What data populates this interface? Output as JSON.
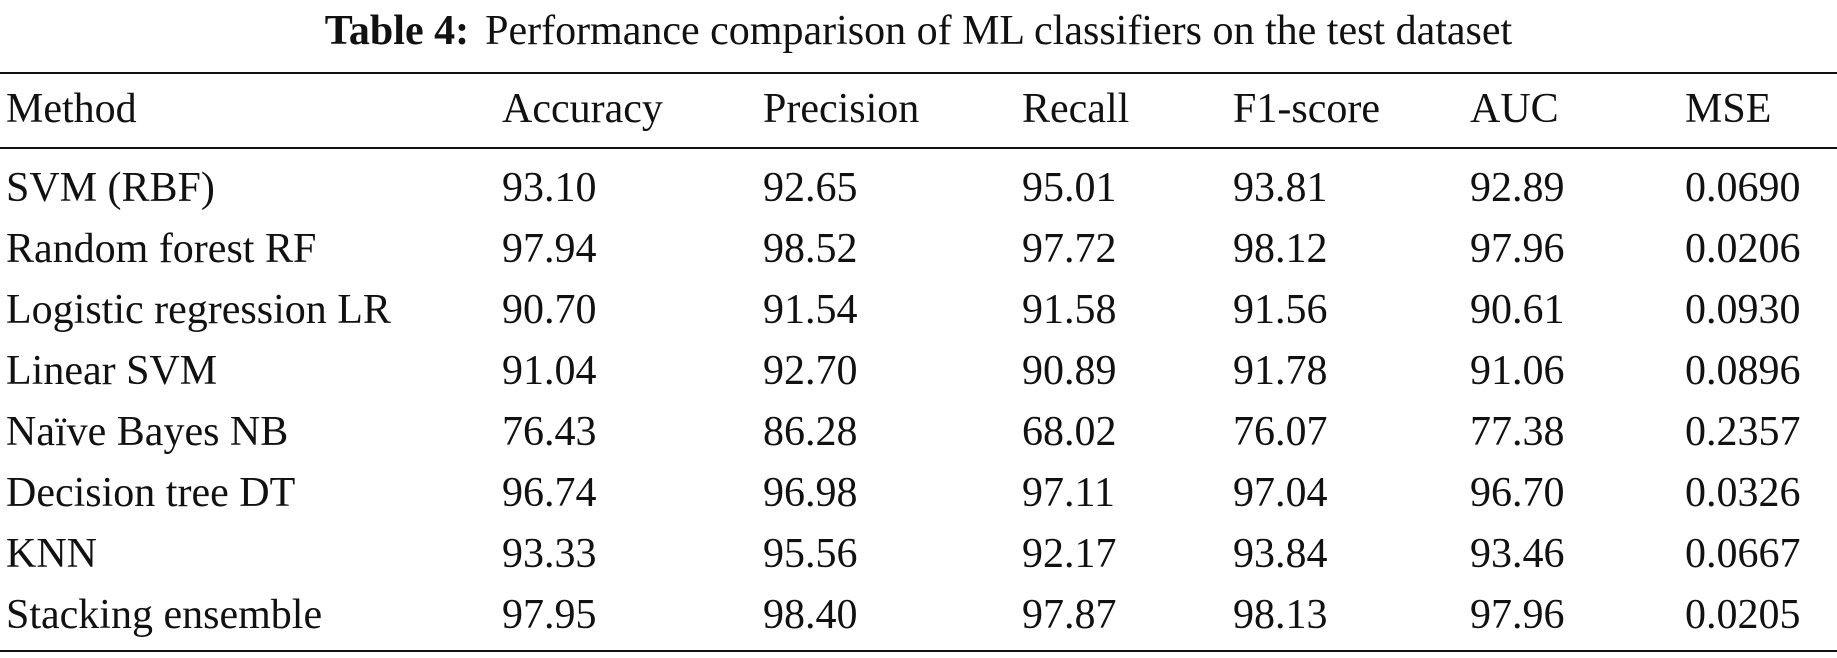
{
  "caption": {
    "label": "Table 4:",
    "text": "Performance comparison of ML classifiers on the test dataset"
  },
  "table": {
    "headers": [
      "Method",
      "Accuracy",
      "Precision",
      "Recall",
      "F1-score",
      "AUC",
      "MSE"
    ],
    "rows": [
      [
        "SVM (RBF)",
        "93.10",
        "92.65",
        "95.01",
        "93.81",
        "92.89",
        "0.0690"
      ],
      [
        "Random forest RF",
        "97.94",
        "98.52",
        "97.72",
        "98.12",
        "97.96",
        "0.0206"
      ],
      [
        "Logistic regression LR",
        "90.70",
        "91.54",
        "91.58",
        "91.56",
        "90.61",
        "0.0930"
      ],
      [
        "Linear SVM",
        "91.04",
        "92.70",
        "90.89",
        "91.78",
        "91.06",
        "0.0896"
      ],
      [
        "Naïve Bayes NB",
        "76.43",
        "86.28",
        "68.02",
        "76.07",
        "77.38",
        "0.2357"
      ],
      [
        "Decision tree DT",
        "96.74",
        "96.98",
        "97.11",
        "97.04",
        "96.70",
        "0.0326"
      ],
      [
        "KNN",
        "93.33",
        "95.56",
        "92.17",
        "93.84",
        "93.46",
        "0.0667"
      ],
      [
        "Stacking ensemble",
        "97.95",
        "98.40",
        "97.87",
        "98.13",
        "97.96",
        "0.0205"
      ]
    ]
  }
}
